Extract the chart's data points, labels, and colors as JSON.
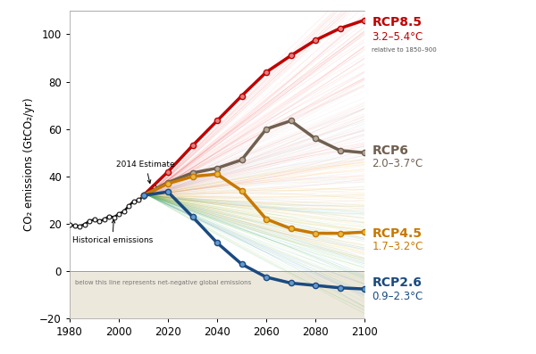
{
  "ylabel": "CO₂ emissions (GtCO₂/yr)",
  "xlim": [
    1980,
    2100
  ],
  "ylim": [
    -20,
    110
  ],
  "yticks": [
    -20,
    0,
    20,
    40,
    60,
    80,
    100
  ],
  "xticks": [
    1980,
    2000,
    2020,
    2040,
    2060,
    2080,
    2100
  ],
  "historical": {
    "years": [
      1980,
      1982,
      1984,
      1986,
      1988,
      1990,
      1992,
      1994,
      1996,
      1998,
      2000,
      2002,
      2004,
      2006,
      2008,
      2010,
      2012,
      2014
    ],
    "values": [
      19.5,
      19.2,
      19.0,
      19.8,
      21.2,
      21.8,
      21.2,
      21.8,
      23.2,
      22.8,
      24.2,
      25.2,
      27.5,
      29.5,
      30.0,
      31.5,
      33.5,
      35.7
    ],
    "color": "#111111",
    "linewidth": 1.8
  },
  "rcp85": {
    "label": "RCP8.5",
    "sublabel": "3.2–5.4°C",
    "years": [
      2010,
      2020,
      2030,
      2040,
      2050,
      2060,
      2070,
      2080,
      2090,
      2100
    ],
    "values": [
      32.0,
      42.0,
      53.0,
      63.5,
      74.0,
      84.0,
      91.0,
      97.5,
      102.5,
      106.0
    ],
    "color": "#c00000",
    "marker_color": "#e08080",
    "linewidth": 2.5
  },
  "rcp6": {
    "label": "RCP6",
    "sublabel": "2.0–3.7°C",
    "years": [
      2010,
      2020,
      2030,
      2040,
      2050,
      2060,
      2070,
      2080,
      2090,
      2100
    ],
    "values": [
      32.0,
      37.5,
      41.5,
      43.5,
      47.0,
      60.0,
      63.5,
      56.0,
      51.0,
      50.0
    ],
    "color": "#706050",
    "marker_color": "#b8a898",
    "linewidth": 2.5
  },
  "rcp45": {
    "label": "RCP4.5",
    "sublabel": "1.7–3.2°C",
    "years": [
      2010,
      2020,
      2030,
      2040,
      2050,
      2060,
      2070,
      2080,
      2090,
      2100
    ],
    "values": [
      32.0,
      37.0,
      40.0,
      41.0,
      34.0,
      22.0,
      18.0,
      16.0,
      16.0,
      16.5
    ],
    "color": "#c87800",
    "marker_color": "#e8b840",
    "linewidth": 2.5
  },
  "rcp26": {
    "label": "RCP2.6",
    "sublabel": "0.9–2.3°C",
    "years": [
      2010,
      2020,
      2030,
      2040,
      2050,
      2060,
      2070,
      2080,
      2090,
      2100
    ],
    "values": [
      32.0,
      33.5,
      23.0,
      12.0,
      3.0,
      -2.5,
      -5.0,
      -6.0,
      -7.0,
      -7.5
    ],
    "color": "#1a4a80",
    "marker_color": "#6699cc",
    "linewidth": 2.5
  },
  "net_neg_label": "below this line represents net-negative global emissions",
  "hist_label": "Historical emissions",
  "est_label": "2014 Estimate",
  "relative_label": "relative to 1850–900"
}
